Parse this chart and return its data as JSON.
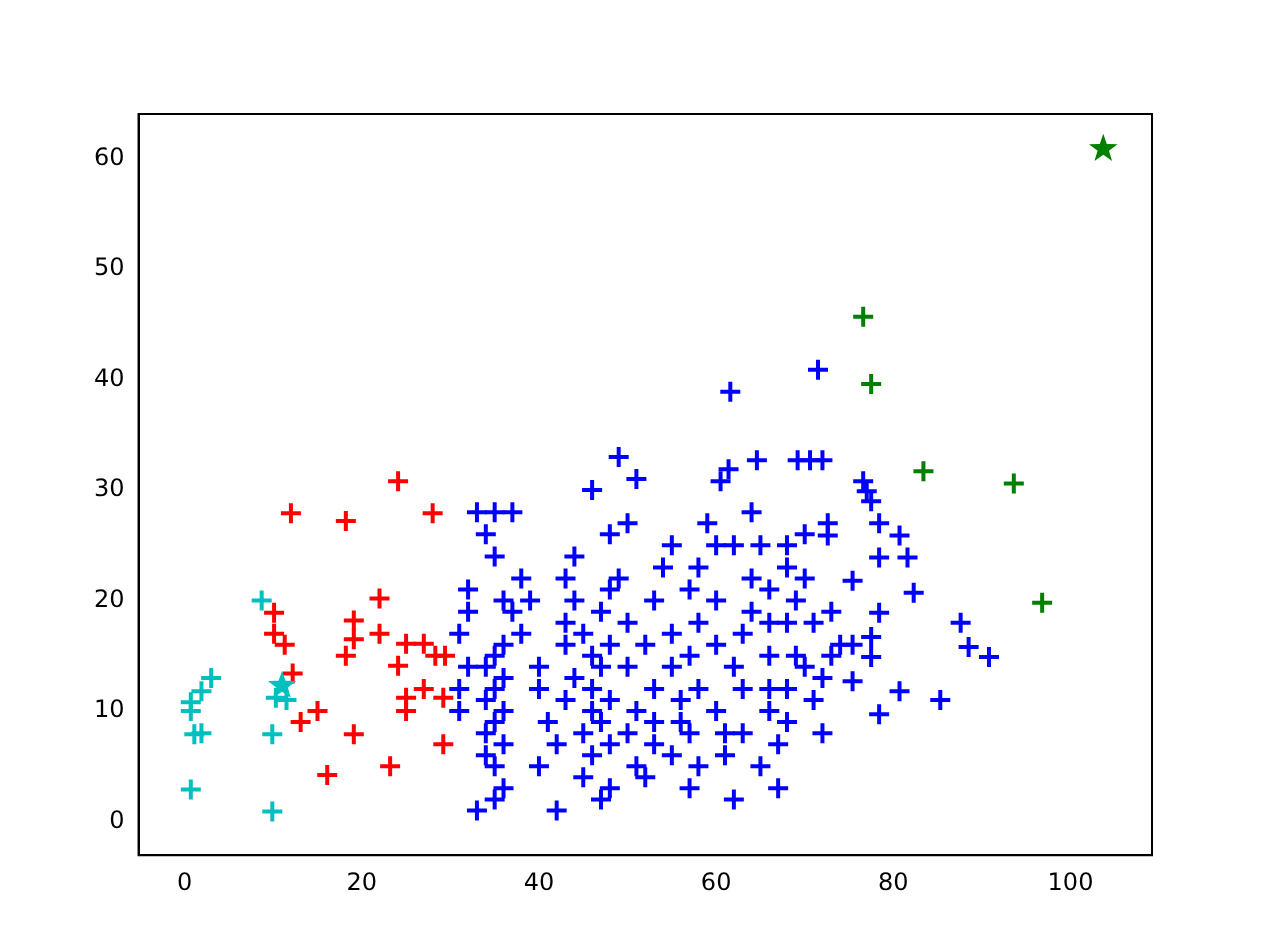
{
  "chart_data": {
    "type": "scatter",
    "xlim": [
      -5.2,
      109.2
    ],
    "ylim": [
      -3.05,
      64.05
    ],
    "xticks": [
      0,
      20,
      40,
      60,
      80,
      100
    ],
    "yticks": [
      0,
      10,
      20,
      30,
      40,
      50,
      60
    ],
    "marker": "cross",
    "series": [
      {
        "color": "#00bfbf",
        "x": [
          8.7,
          3,
          1.9,
          0.7,
          0.7,
          1.1,
          1.9,
          9.9,
          0.7,
          9.9,
          10.3,
          11.5
        ],
        "values": [
          20,
          13,
          11.8,
          10.8,
          10,
          7.9,
          8,
          7.9,
          2.9,
          0.9,
          11.2,
          11
        ]
      },
      {
        "color": "#ff0000",
        "x": [
          24.1,
          12,
          18.2,
          28,
          22,
          10.1,
          10.1,
          11.3,
          19.1,
          19.1,
          18.2,
          22,
          25,
          27,
          28.3,
          29.4,
          24.1,
          12.2,
          27,
          25,
          25,
          29.2,
          15,
          13.1,
          19.1,
          29.2,
          16.1,
          23.2
        ],
        "values": [
          30.8,
          27.9,
          27.2,
          27.9,
          20.2,
          18.9,
          17,
          16,
          18.2,
          16.5,
          15,
          17,
          16.1,
          16.1,
          15,
          15,
          14.1,
          13.4,
          12,
          11.2,
          10,
          11.2,
          10,
          9,
          7.9,
          7,
          4.2,
          5
        ]
      },
      {
        "color": "#0000ff",
        "x": [
          31,
          31,
          32,
          31,
          32,
          32,
          33,
          35,
          37,
          34,
          35,
          33,
          35,
          36,
          35,
          34,
          36,
          34,
          35,
          36,
          34,
          35,
          36,
          34,
          35,
          36,
          38,
          37,
          39,
          38,
          36,
          40,
          40,
          41,
          42,
          40,
          42,
          43,
          44,
          43,
          43,
          44,
          43,
          44,
          46,
          45,
          46,
          46,
          46,
          45,
          46,
          45,
          47,
          48,
          48,
          47,
          48,
          47,
          48,
          47,
          48,
          49,
          48,
          49,
          50,
          51,
          50,
          50,
          51,
          50,
          51,
          52,
          53,
          53,
          53,
          52,
          53,
          54,
          55,
          55,
          55,
          56,
          56,
          55,
          57,
          58,
          57,
          58,
          57,
          58,
          57,
          58,
          59,
          60,
          60,
          60,
          60,
          61,
          61,
          62,
          63,
          63,
          62,
          63,
          64,
          64,
          62,
          64,
          65,
          66,
          66,
          66,
          66,
          66,
          65,
          67,
          67,
          68,
          68,
          69,
          68,
          69,
          68,
          68,
          70,
          70,
          71,
          70,
          71,
          72,
          72,
          73,
          73,
          74,
          61.6,
          71.5,
          64.6,
          69.2,
          70.6,
          72,
          61.4,
          60.5,
          76.6,
          77,
          77.5,
          78.4,
          80.7,
          72.6,
          72.6,
          78.4,
          81.6,
          82.3,
          75.4,
          78.4,
          87.6,
          88.5,
          90.8,
          85.3,
          80.7,
          78.4,
          77.5,
          77.5,
          75.4,
          75.4
        ],
        "values": [
          10,
          12,
          14,
          17,
          19,
          21,
          28,
          28,
          28,
          26,
          24,
          1,
          2,
          3,
          5,
          6,
          7,
          8,
          9,
          10,
          11,
          12,
          13,
          14,
          15,
          16,
          17,
          19,
          20,
          22,
          20,
          14,
          12,
          9,
          1,
          5,
          7,
          11,
          13,
          16,
          18,
          20,
          22,
          24,
          30,
          17,
          15,
          12,
          10,
          8,
          6,
          4,
          2,
          3,
          7,
          9,
          11,
          14,
          16,
          19,
          21,
          22,
          26,
          33,
          27,
          31,
          18,
          14,
          10,
          8,
          5,
          4,
          7,
          9,
          12,
          16,
          20,
          23,
          25,
          17,
          14,
          11,
          9,
          6,
          3,
          5,
          8,
          12,
          15,
          18,
          21,
          23,
          27,
          25,
          20,
          16,
          10,
          6,
          8,
          2,
          8,
          12,
          14,
          17,
          19,
          22,
          25,
          28,
          25,
          21,
          18,
          15,
          12,
          10,
          5,
          7,
          3,
          9,
          12,
          15,
          18,
          20,
          23,
          25,
          26,
          22,
          18,
          14,
          11,
          8,
          13,
          15,
          19,
          16,
          38.9,
          40.9,
          32.7,
          32.7,
          32.7,
          32.7,
          31.9,
          30.8,
          30.8,
          29.9,
          29,
          27,
          25.9,
          27,
          25.9,
          23.9,
          23.9,
          20.7,
          21.8,
          18.9,
          18,
          15.8,
          14.9,
          11,
          11.8,
          9.7,
          16.7,
          14.9,
          16,
          12.7
        ]
      },
      {
        "color": "#008000",
        "x": [
          76.6,
          77.5,
          83.4,
          93.6,
          96.8
        ],
        "values": [
          45.7,
          39.6,
          31.7,
          30.6,
          19.8
        ]
      },
      {
        "marker": "star",
        "colors": [
          "#00bfbf",
          "#008000"
        ],
        "x": [
          11,
          103.7
        ],
        "values": [
          12.3,
          60.9
        ]
      }
    ]
  }
}
